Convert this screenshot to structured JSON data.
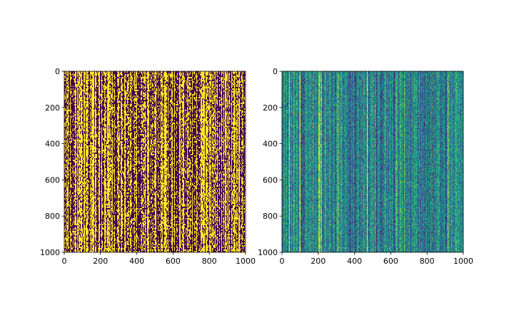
{
  "figure": {
    "background": "#ffffff"
  },
  "chart_data": [
    {
      "type": "heatmap",
      "title": "",
      "xlabel": "",
      "ylabel": "",
      "xlim": [
        0,
        1000
      ],
      "ylim": [
        1000,
        0
      ],
      "y_axis_inverted": true,
      "xticks": [
        0,
        200,
        400,
        600,
        800,
        1000
      ],
      "yticks": [
        0,
        200,
        400,
        600,
        800,
        1000
      ],
      "xtick_labels": [
        "0",
        "200",
        "400",
        "600",
        "800",
        "1000"
      ],
      "ytick_labels": [
        "0",
        "200",
        "400",
        "600",
        "800",
        "1000"
      ],
      "colormap": "viridis",
      "value_range": [
        0,
        1
      ],
      "values": "binary 1000x1000 matrix of 0/1 values with strong column-wise (vertical stripe) structure; roughly half the cells are 1",
      "colors": {
        "low": "#440154",
        "high": "#fde725"
      },
      "grid": false,
      "legend": "none"
    },
    {
      "type": "heatmap",
      "title": "",
      "xlabel": "",
      "ylabel": "",
      "xlim": [
        0,
        1000
      ],
      "ylim": [
        1000,
        0
      ],
      "y_axis_inverted": true,
      "xticks": [
        0,
        200,
        400,
        600,
        800,
        1000
      ],
      "yticks": [
        0,
        200,
        400,
        600,
        800,
        1000
      ],
      "xtick_labels": [
        "0",
        "200",
        "400",
        "600",
        "800",
        "1000"
      ],
      "ytick_labels": [
        "0",
        "200",
        "400",
        "600",
        "800",
        "1000"
      ],
      "colormap": "viridis",
      "values": "continuous 1000x1000 matrix with column-wise stripe structure; mostly mid-range values (teal/green) with scattered high (yellow) and low (blue) columns",
      "colors": {
        "low": "#3b528b",
        "mid": "#21918c",
        "high": "#fde725"
      },
      "grid": false,
      "legend": "none"
    }
  ]
}
